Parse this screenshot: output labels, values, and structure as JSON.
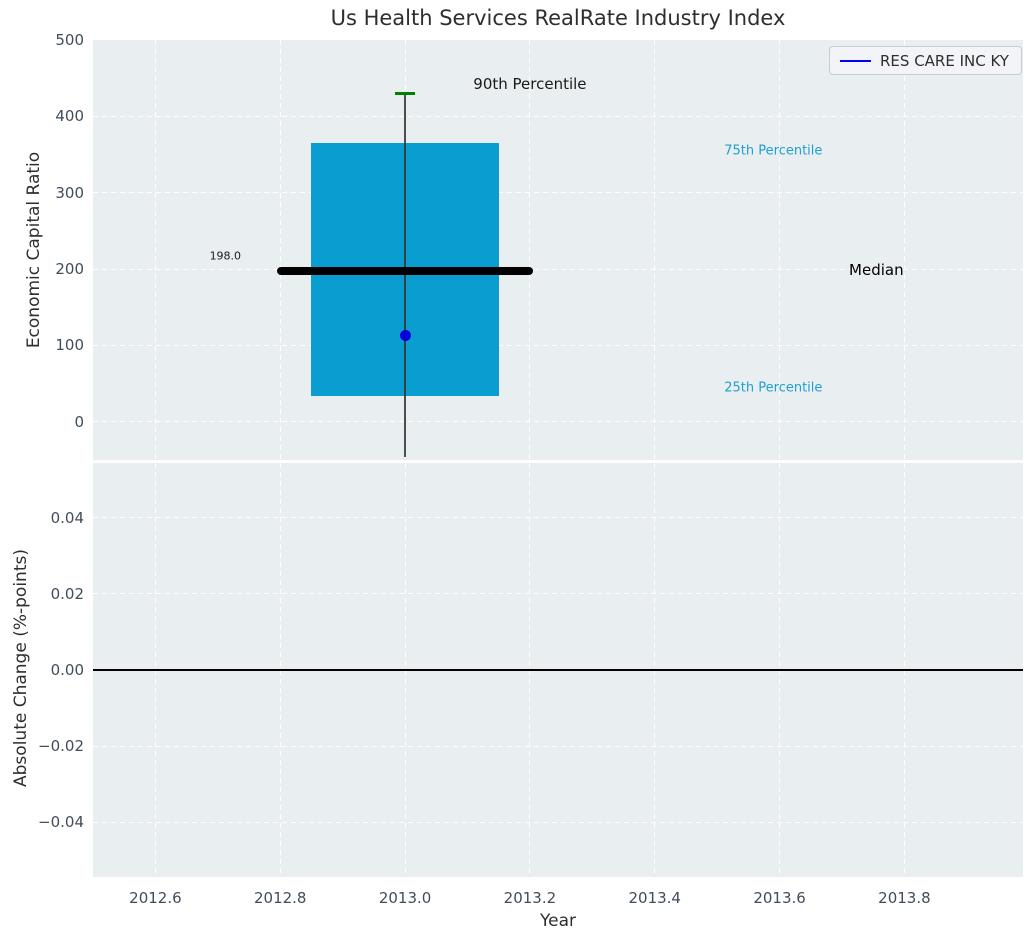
{
  "chart_data": [
    {
      "type": "box",
      "title": "Us Health Services RealRate Industry Index",
      "ylabel": "Economic Capital Ratio",
      "xlabel": "Year",
      "xlim": [
        2012.5,
        2013.99
      ],
      "ylim": [
        -50,
        500
      ],
      "x_ticks": [
        2012.6,
        2012.8,
        2013.0,
        2013.2,
        2013.4,
        2013.6,
        2013.8
      ],
      "x_tick_labels_visible": false,
      "y_ticks": [
        0,
        100,
        200,
        300,
        400,
        500
      ],
      "y_tick_labels": [
        "0",
        "100",
        "200",
        "300",
        "400",
        "500"
      ],
      "grid": true,
      "legend": [
        "RES CARE INC KY"
      ],
      "legend_position": "upper right",
      "series": [
        {
          "name": "RES CARE INC KY",
          "x": 2013.0,
          "point_value": 113,
          "median": 198.0,
          "median_label": "198.0",
          "p25": 34,
          "p75": 365,
          "p90": 430,
          "whisker_low": -46,
          "box_halfwidth": 0.15,
          "median_halfwidth": 0.205,
          "cap_halfwidth": 0.016
        }
      ],
      "annotations": [
        {
          "text": "90th Percentile",
          "x": 2013.2,
          "y": 443,
          "color": "#1a1a1a",
          "size": 15
        },
        {
          "text": "75th Percentile",
          "x": 2013.59,
          "y": 355,
          "color": "#1f9fce",
          "size": 13
        },
        {
          "text": "Median",
          "x": 2013.755,
          "y": 199,
          "color": "#000000",
          "size": 15
        },
        {
          "text": "25th Percentile",
          "x": 2013.59,
          "y": 44,
          "color": "#1f9fce",
          "size": 13
        },
        {
          "text": "198.0",
          "x": 2012.712,
          "y": 217,
          "color": "#1a1a1a",
          "size": 11
        }
      ]
    },
    {
      "type": "line",
      "title": "",
      "ylabel": "Absolute Change (%-points)",
      "xlabel": "Year",
      "xlim": [
        2012.5,
        2013.99
      ],
      "ylim": [
        -0.0543,
        0.0543
      ],
      "x_ticks": [
        2012.6,
        2012.8,
        2013.0,
        2013.2,
        2013.4,
        2013.6,
        2013.8
      ],
      "x_tick_labels": [
        "2012.6",
        "2012.8",
        "2013.0",
        "2013.2",
        "2013.4",
        "2013.6",
        "2013.8"
      ],
      "y_ticks": [
        -0.04,
        -0.02,
        0.0,
        0.02,
        0.04
      ],
      "y_tick_labels": [
        "−0.04",
        "−0.02",
        "0.00",
        "0.02",
        "0.04"
      ],
      "grid": true,
      "zero_line": 0.0,
      "series": []
    }
  ],
  "colors": {
    "box_fill": "#0a9dd0",
    "point": "#0000dd",
    "cap": "#008000",
    "median_line": "#000000",
    "whisker": "#4d4d4d",
    "percentile_label": "#1f9fce",
    "tick_label": "#414d5a",
    "plot_bg": "#e9eef0",
    "grid": "#ffffff",
    "legend_line": "#0000ff",
    "zero_line": "#000000",
    "title": "#2e2e2e"
  }
}
